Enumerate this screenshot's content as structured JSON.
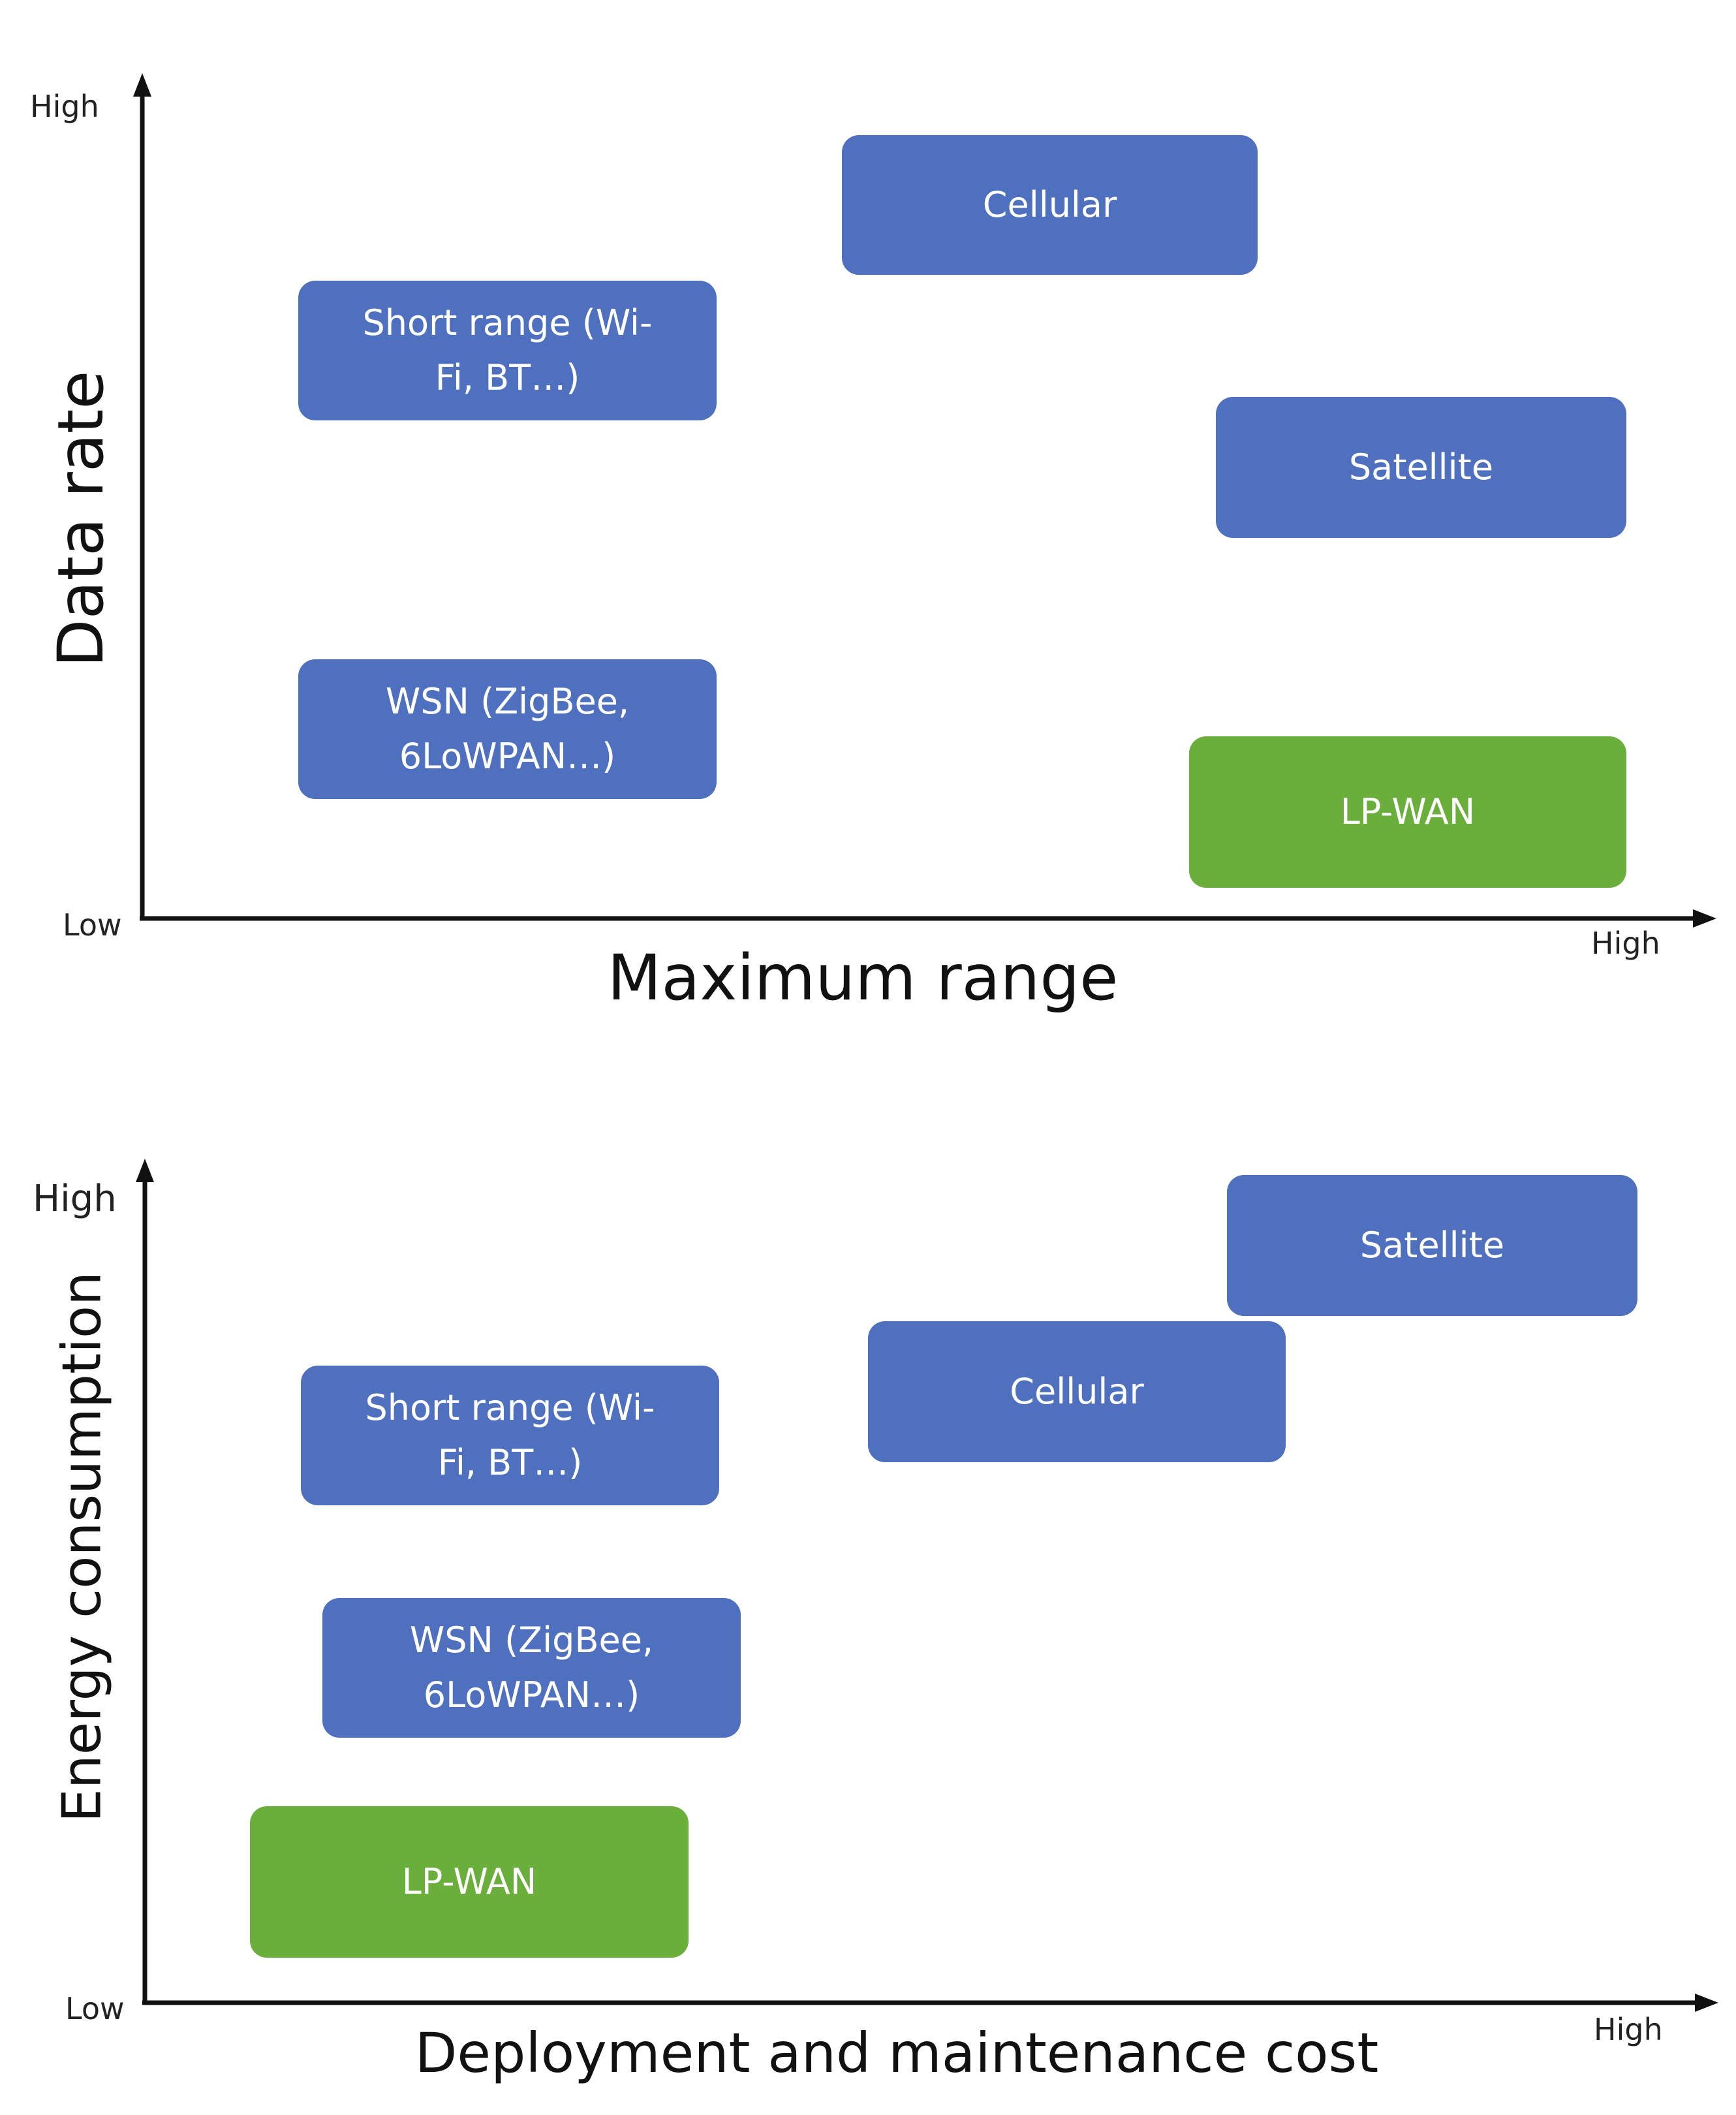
{
  "colors": {
    "technology_box": "#4f70bf",
    "lpwan_box": "#6aae3c",
    "axis": "#111111"
  },
  "top_chart": {
    "y_axis_title": "Data rate",
    "x_axis_title": "Maximum range",
    "y_high": "High",
    "origin_low": "Low",
    "x_high": "High",
    "boxes": {
      "cellular": "Cellular",
      "short_range_line1": "Short range (Wi-",
      "short_range_line2": "Fi, BT…)",
      "satellite": "Satellite",
      "wsn_line1": "WSN (ZigBee,",
      "wsn_line2": "6LoWPAN…)",
      "lpwan": "LP-WAN"
    }
  },
  "bottom_chart": {
    "y_axis_title": "Energy consumption",
    "x_axis_title": "Deployment and maintenance cost",
    "y_high": "High",
    "origin_low": "Low",
    "x_high": "High",
    "boxes": {
      "satellite": "Satellite",
      "cellular": "Cellular",
      "short_range_line1": "Short range (Wi-",
      "short_range_line2": "Fi, BT…)",
      "wsn_line1": "WSN (ZigBee,",
      "wsn_line2": "6LoWPAN…)",
      "lpwan": "LP-WAN"
    }
  }
}
